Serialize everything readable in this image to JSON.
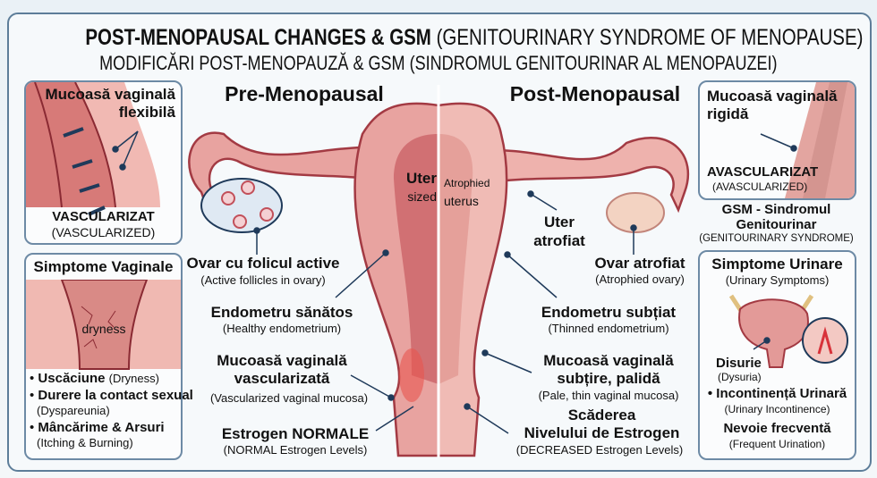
{
  "header": {
    "title_bold": "POST-MENOPAUSAL CHANGES & GSM",
    "title_paren": "(GENITOURINARY SYNDROME OF MENOPAUSE)",
    "subtitle": "MODIFICĂRI POST-MENOPAUZĂ & GSM (SINDROMUL GENITOURINAR AL MENOPAUZEI)"
  },
  "left_top_box": {
    "title1": "Mucoasă vaginală",
    "title2": "flexibilă",
    "label": "VASCULARIZAT",
    "label_en": "(VASCULARIZED)"
  },
  "left_bottom_box": {
    "title": "Simptome Vaginale",
    "image_label": "dryness",
    "items": [
      {
        "ro": "Uscăciune",
        "en": "(Dryness)"
      },
      {
        "ro": "Durere la contact sexual",
        "en": "(Dyspareunia)"
      },
      {
        "ro": "Mâncărime & Arsuri",
        "en": "(Itching & Burning)"
      }
    ]
  },
  "pre": {
    "heading": "Pre-Menopausal",
    "uter": "Uter",
    "sized": "sized",
    "ovary": "Ovar cu folicul active",
    "ovary_en": "(Active follicles in ovary)",
    "endo": "Endometru sănătos",
    "endo_en": "(Healthy endometrium)",
    "mucosa1": "Mucoasă vaginală",
    "mucosa2": "vascularizată",
    "mucosa_en": "(Vascularized vaginal mucosa)",
    "estrogen": "Estrogen NORMALE",
    "estrogen_en": "(NORMAL Estrogen Levels)"
  },
  "post": {
    "heading": "Post-Menopausal",
    "atrophied": "Atrophied",
    "uterus": "uterus",
    "uter1": "Uter",
    "uter2": "atrofiat",
    "ovary": "Ovar atrofiat",
    "ovary_en": "(Atrophied ovary)",
    "endo": "Endometru subțiat",
    "endo_en": "(Thinned endometrium)",
    "mucosa1": "Mucoasă vaginală",
    "mucosa2": "subțire, palidă",
    "mucosa_en": "(Pale, thin vaginal mucosa)",
    "estrogen1": "Scăderea",
    "estrogen2": "Nivelului de Estrogen",
    "estrogen_en": "(DECREASED Estrogen Levels)"
  },
  "right_top_box": {
    "title1": "Mucoasă vaginală",
    "title2": "rigidă",
    "label": "AVASCULARIZAT",
    "label_en": "(AVASCULARIZED)"
  },
  "gsm": {
    "line1": "GSM - Sindromul",
    "line2": "Genitourinar",
    "line3": "(GENITOURINARY SYNDROME)"
  },
  "right_bottom_box": {
    "title": "Simptome Urinare",
    "title_en": "(Urinary Symptoms)",
    "dysuria": "Disurie",
    "dysuria_en": "(Dysuria)",
    "incont": "Incontinență Urinară",
    "incont_en": "(Urinary Incontinence)",
    "freq": "Nevoie frecventă",
    "freq_en": "(Frequent Urination)"
  },
  "colors": {
    "tissue": "#e39a98",
    "tissue_dark": "#a33a43",
    "pale": "#f3c9c3",
    "border": "#5d7d99",
    "pointer": "#1f3a5a"
  }
}
